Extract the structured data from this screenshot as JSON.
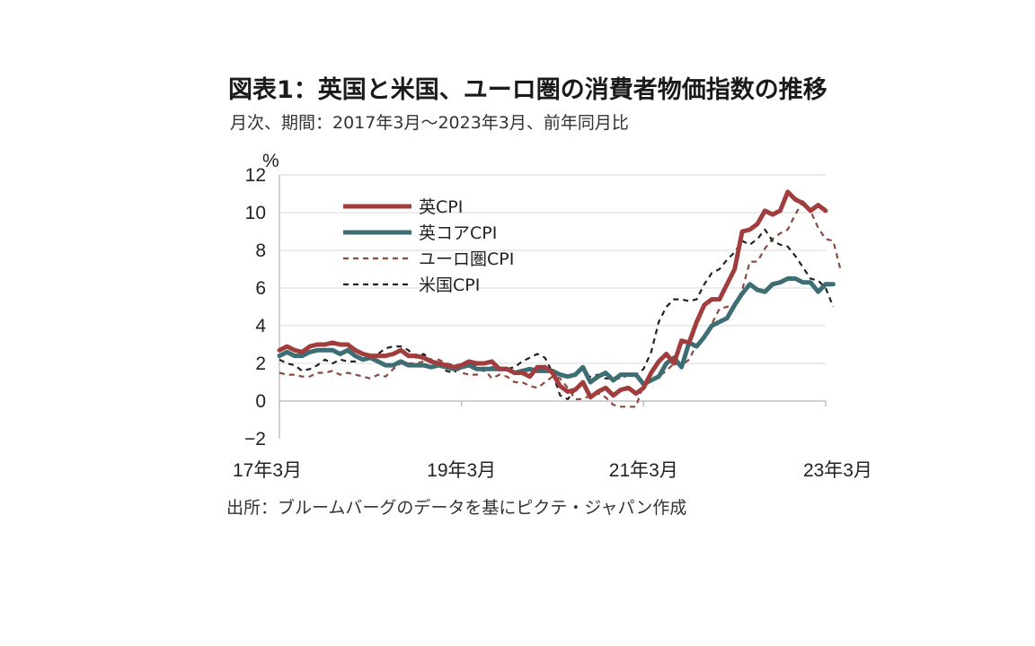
{
  "title": "図表1：英国と米国、ユーロ圏の消費者物価指数の推移",
  "subtitle": "月次、期間：2017年3月～2023年3月、前年同月比",
  "source": "出所：ブルームバーグのデータを基にピクテ・ジャパン作成",
  "chart_data": {
    "type": "line",
    "unit_label": "%",
    "x_range": [
      "2017-03",
      "2023-03"
    ],
    "x_ticks": [
      "17年3月",
      "19年3月",
      "21年3月",
      "23年3月"
    ],
    "y_ticks": [
      "12",
      "10",
      "8",
      "6",
      "4",
      "2",
      "0",
      "−2"
    ],
    "ylim": [
      -2,
      12
    ],
    "legend_position": "top-left",
    "series": [
      {
        "name": "英CPI",
        "color": "#a23d3d",
        "style": "solid",
        "points": [
          [
            0,
            2.7
          ],
          [
            1,
            2.9
          ],
          [
            2,
            2.7
          ],
          [
            3,
            2.6
          ],
          [
            4,
            2.9
          ],
          [
            5,
            3.0
          ],
          [
            6,
            3.0
          ],
          [
            7,
            3.1
          ],
          [
            8,
            3.0
          ],
          [
            9,
            3.0
          ],
          [
            10,
            2.7
          ],
          [
            11,
            2.5
          ],
          [
            12,
            2.4
          ],
          [
            13,
            2.4
          ],
          [
            14,
            2.4
          ],
          [
            15,
            2.5
          ],
          [
            16,
            2.7
          ],
          [
            17,
            2.4
          ],
          [
            18,
            2.4
          ],
          [
            19,
            2.3
          ],
          [
            20,
            2.1
          ],
          [
            21,
            2.0
          ],
          [
            22,
            1.9
          ],
          [
            23,
            1.8
          ],
          [
            24,
            1.9
          ],
          [
            25,
            2.1
          ],
          [
            26,
            2.0
          ],
          [
            27,
            2.0
          ],
          [
            28,
            2.1
          ],
          [
            29,
            1.7
          ],
          [
            30,
            1.7
          ],
          [
            31,
            1.5
          ],
          [
            32,
            1.5
          ],
          [
            33,
            1.3
          ],
          [
            34,
            1.8
          ],
          [
            35,
            1.8
          ],
          [
            36,
            1.5
          ],
          [
            37,
            0.8
          ],
          [
            38,
            0.5
          ],
          [
            39,
            0.6
          ],
          [
            40,
            1.0
          ],
          [
            41,
            0.2
          ],
          [
            42,
            0.5
          ],
          [
            43,
            0.7
          ],
          [
            44,
            0.3
          ],
          [
            45,
            0.6
          ],
          [
            46,
            0.7
          ],
          [
            47,
            0.4
          ],
          [
            48,
            0.7
          ],
          [
            49,
            1.5
          ],
          [
            50,
            2.1
          ],
          [
            51,
            2.5
          ],
          [
            52,
            2.0
          ],
          [
            53,
            3.2
          ],
          [
            54,
            3.1
          ],
          [
            55,
            4.2
          ],
          [
            56,
            5.1
          ],
          [
            57,
            5.4
          ],
          [
            58,
            5.4
          ],
          [
            59,
            6.2
          ],
          [
            60,
            7.0
          ],
          [
            61,
            9.0
          ],
          [
            62,
            9.1
          ],
          [
            63,
            9.4
          ],
          [
            64,
            10.1
          ],
          [
            65,
            9.9
          ],
          [
            66,
            10.1
          ],
          [
            67,
            11.1
          ],
          [
            68,
            10.7
          ],
          [
            69,
            10.5
          ],
          [
            70,
            10.1
          ],
          [
            71,
            10.4
          ],
          [
            72,
            10.1
          ]
        ]
      },
      {
        "name": "英コアCPI",
        "color": "#3d6e74",
        "style": "solid",
        "points": [
          [
            0,
            2.4
          ],
          [
            1,
            2.6
          ],
          [
            2,
            2.4
          ],
          [
            3,
            2.4
          ],
          [
            4,
            2.6
          ],
          [
            5,
            2.7
          ],
          [
            6,
            2.7
          ],
          [
            7,
            2.7
          ],
          [
            8,
            2.5
          ],
          [
            9,
            2.7
          ],
          [
            10,
            2.4
          ],
          [
            11,
            2.2
          ],
          [
            12,
            2.3
          ],
          [
            13,
            2.1
          ],
          [
            14,
            1.9
          ],
          [
            15,
            1.9
          ],
          [
            16,
            2.1
          ],
          [
            17,
            1.9
          ],
          [
            18,
            1.9
          ],
          [
            19,
            1.9
          ],
          [
            20,
            1.8
          ],
          [
            21,
            1.9
          ],
          [
            22,
            1.8
          ],
          [
            23,
            1.7
          ],
          [
            24,
            1.8
          ],
          [
            25,
            1.9
          ],
          [
            26,
            1.7
          ],
          [
            27,
            1.7
          ],
          [
            28,
            1.7
          ],
          [
            29,
            1.7
          ],
          [
            30,
            1.7
          ],
          [
            31,
            1.5
          ],
          [
            32,
            1.6
          ],
          [
            33,
            1.7
          ],
          [
            34,
            1.6
          ],
          [
            35,
            1.6
          ],
          [
            36,
            1.6
          ],
          [
            37,
            1.4
          ],
          [
            38,
            1.3
          ],
          [
            39,
            1.4
          ],
          [
            40,
            1.8
          ],
          [
            41,
            1.0
          ],
          [
            42,
            1.3
          ],
          [
            43,
            1.5
          ],
          [
            44,
            1.1
          ],
          [
            45,
            1.4
          ],
          [
            46,
            1.4
          ],
          [
            47,
            1.4
          ],
          [
            48,
            0.9
          ],
          [
            49,
            1.1
          ],
          [
            50,
            1.3
          ],
          [
            51,
            2.0
          ],
          [
            52,
            2.3
          ],
          [
            53,
            1.8
          ],
          [
            54,
            3.1
          ],
          [
            55,
            2.9
          ],
          [
            56,
            3.4
          ],
          [
            57,
            4.0
          ],
          [
            58,
            4.2
          ],
          [
            59,
            4.4
          ],
          [
            60,
            5.1
          ],
          [
            61,
            5.7
          ],
          [
            62,
            6.2
          ],
          [
            63,
            5.9
          ],
          [
            64,
            5.8
          ],
          [
            65,
            6.2
          ],
          [
            66,
            6.3
          ],
          [
            67,
            6.5
          ],
          [
            68,
            6.5
          ],
          [
            69,
            6.3
          ],
          [
            70,
            6.3
          ],
          [
            71,
            5.8
          ],
          [
            72,
            6.2
          ],
          [
            73,
            6.2
          ]
        ]
      },
      {
        "name": "ユーロ圏CPI",
        "color": "#8a4a3e",
        "style": "dashed",
        "points": [
          [
            0,
            1.5
          ],
          [
            1,
            1.4
          ],
          [
            2,
            1.4
          ],
          [
            3,
            1.3
          ],
          [
            4,
            1.3
          ],
          [
            5,
            1.5
          ],
          [
            6,
            1.5
          ],
          [
            7,
            1.6
          ],
          [
            8,
            1.4
          ],
          [
            9,
            1.5
          ],
          [
            10,
            1.4
          ],
          [
            11,
            1.3
          ],
          [
            12,
            1.2
          ],
          [
            13,
            1.4
          ],
          [
            14,
            1.3
          ],
          [
            15,
            1.7
          ],
          [
            16,
            2.0
          ],
          [
            17,
            2.0
          ],
          [
            18,
            2.0
          ],
          [
            19,
            2.1
          ],
          [
            20,
            2.1
          ],
          [
            21,
            2.2
          ],
          [
            22,
            2.0
          ],
          [
            23,
            1.9
          ],
          [
            24,
            1.5
          ],
          [
            25,
            1.4
          ],
          [
            26,
            1.4
          ],
          [
            27,
            1.7
          ],
          [
            28,
            1.2
          ],
          [
            29,
            1.4
          ],
          [
            30,
            1.3
          ],
          [
            31,
            1.0
          ],
          [
            32,
            1.0
          ],
          [
            33,
            0.8
          ],
          [
            34,
            0.7
          ],
          [
            35,
            1.0
          ],
          [
            36,
            1.3
          ],
          [
            37,
            1.2
          ],
          [
            38,
            0.7
          ],
          [
            39,
            0.1
          ],
          [
            40,
            0.1
          ],
          [
            41,
            0.3
          ],
          [
            42,
            0.4
          ],
          [
            43,
            0.2
          ],
          [
            44,
            -0.2
          ],
          [
            45,
            -0.3
          ],
          [
            46,
            -0.3
          ],
          [
            47,
            -0.3
          ],
          [
            48,
            0.9
          ],
          [
            49,
            1.1
          ],
          [
            50,
            1.3
          ],
          [
            51,
            1.6
          ],
          [
            52,
            2.0
          ],
          [
            53,
            1.9
          ],
          [
            54,
            2.2
          ],
          [
            55,
            3.0
          ],
          [
            56,
            3.4
          ],
          [
            57,
            4.1
          ],
          [
            58,
            4.9
          ],
          [
            59,
            5.0
          ],
          [
            60,
            5.1
          ],
          [
            61,
            5.9
          ],
          [
            62,
            7.4
          ],
          [
            63,
            7.4
          ],
          [
            64,
            8.1
          ],
          [
            65,
            8.6
          ],
          [
            66,
            8.9
          ],
          [
            67,
            9.1
          ],
          [
            68,
            9.9
          ],
          [
            69,
            10.6
          ],
          [
            70,
            10.1
          ],
          [
            71,
            9.2
          ],
          [
            72,
            8.6
          ],
          [
            73,
            8.5
          ],
          [
            74,
            6.9
          ]
        ]
      },
      {
        "name": "米国CPI",
        "color": "#222222",
        "style": "dashed",
        "points": [
          [
            0,
            2.2
          ],
          [
            1,
            2.0
          ],
          [
            2,
            1.9
          ],
          [
            3,
            1.6
          ],
          [
            4,
            1.7
          ],
          [
            5,
            1.9
          ],
          [
            6,
            2.2
          ],
          [
            7,
            2.0
          ],
          [
            8,
            2.2
          ],
          [
            9,
            2.1
          ],
          [
            10,
            2.1
          ],
          [
            11,
            2.2
          ],
          [
            12,
            2.4
          ],
          [
            13,
            2.5
          ],
          [
            14,
            2.8
          ],
          [
            15,
            2.9
          ],
          [
            16,
            2.9
          ],
          [
            17,
            2.7
          ],
          [
            18,
            2.3
          ],
          [
            19,
            2.5
          ],
          [
            20,
            2.2
          ],
          [
            21,
            1.9
          ],
          [
            22,
            1.6
          ],
          [
            23,
            1.5
          ],
          [
            24,
            1.9
          ],
          [
            25,
            2.0
          ],
          [
            26,
            1.8
          ],
          [
            27,
            1.6
          ],
          [
            28,
            1.8
          ],
          [
            29,
            1.7
          ],
          [
            30,
            1.7
          ],
          [
            31,
            1.8
          ],
          [
            32,
            2.1
          ],
          [
            33,
            2.3
          ],
          [
            34,
            2.5
          ],
          [
            35,
            2.3
          ],
          [
            36,
            1.5
          ],
          [
            37,
            0.3
          ],
          [
            38,
            0.1
          ],
          [
            39,
            0.6
          ],
          [
            40,
            1.0
          ],
          [
            41,
            1.3
          ],
          [
            42,
            1.4
          ],
          [
            43,
            1.2
          ],
          [
            44,
            1.2
          ],
          [
            45,
            1.2
          ],
          [
            46,
            1.4
          ],
          [
            47,
            1.4
          ],
          [
            48,
            1.7
          ],
          [
            49,
            2.6
          ],
          [
            50,
            4.2
          ],
          [
            51,
            5.0
          ],
          [
            52,
            5.4
          ],
          [
            53,
            5.4
          ],
          [
            54,
            5.3
          ],
          [
            55,
            5.4
          ],
          [
            56,
            6.2
          ],
          [
            57,
            6.8
          ],
          [
            58,
            7.0
          ],
          [
            59,
            7.5
          ],
          [
            60,
            7.9
          ],
          [
            61,
            8.5
          ],
          [
            62,
            8.3
          ],
          [
            63,
            8.6
          ],
          [
            64,
            9.1
          ],
          [
            65,
            8.5
          ],
          [
            66,
            8.3
          ],
          [
            67,
            8.2
          ],
          [
            68,
            7.7
          ],
          [
            69,
            7.1
          ],
          [
            70,
            6.5
          ],
          [
            71,
            6.4
          ],
          [
            72,
            6.0
          ],
          [
            73,
            5.0
          ]
        ]
      }
    ]
  }
}
